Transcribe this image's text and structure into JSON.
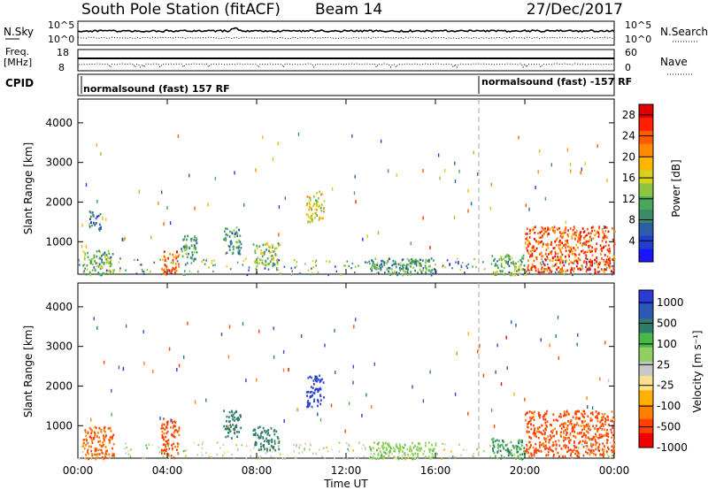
{
  "header": {
    "station": "South Pole Station (fitACF)",
    "beam": "Beam 14",
    "date": "27/Dec/2017"
  },
  "nsky_panel": {
    "left_label": "N.Sky",
    "right_label": "N.Search",
    "left_ticks": [
      "10^5",
      "10^0"
    ],
    "right_ticks": [
      "10^5",
      "10^0"
    ]
  },
  "freq_panel": {
    "left_label_1": "Freq.",
    "left_label_2": "[MHz]",
    "right_label": "Nave",
    "left_ticks": [
      "18",
      "8"
    ],
    "right_ticks": [
      "60",
      "0"
    ]
  },
  "cpid_panel": {
    "label": "CPID",
    "programs": [
      {
        "text": "normalsound (fast) 157 RF",
        "start_hour": 0
      },
      {
        "text": "normalsound (fast) -157 RF",
        "start_hour": 18
      }
    ]
  },
  "chart_data": [
    {
      "type": "heatmap",
      "name": "power",
      "ylabel": "Slant Range [km]",
      "y_ticks": [
        1000,
        2000,
        3000,
        4000
      ],
      "ylim": [
        180,
        4600
      ],
      "xlim_hours": [
        0,
        24
      ],
      "colorbar": {
        "label": "Power [dB]",
        "ticks": [
          4,
          8,
          12,
          16,
          20,
          24,
          28
        ],
        "range": [
          0,
          30
        ],
        "colors": [
          "#1a14ff",
          "#1f3fd0",
          "#2a5fa8",
          "#3b8a6a",
          "#48a85a",
          "#8cc63e",
          "#d6d020",
          "#ffb400",
          "#ff8a00",
          "#ff5a00",
          "#ff2000",
          "#e00000"
        ]
      },
      "regions": [
        {
          "t": [
            0.2,
            1.6
          ],
          "r": [
            180,
            800
          ],
          "v": 12
        },
        {
          "t": [
            0.5,
            1.0
          ],
          "r": [
            1300,
            1800
          ],
          "v": 6
        },
        {
          "t": [
            3.7,
            4.5
          ],
          "r": [
            200,
            800
          ],
          "v": 24
        },
        {
          "t": [
            4.6,
            5.3
          ],
          "r": [
            500,
            1200
          ],
          "v": 10
        },
        {
          "t": [
            6.5,
            7.3
          ],
          "r": [
            700,
            1400
          ],
          "v": 9
        },
        {
          "t": [
            7.8,
            9.0
          ],
          "r": [
            400,
            1000
          ],
          "v": 14
        },
        {
          "t": [
            10.2,
            11.0
          ],
          "r": [
            1500,
            2300
          ],
          "v": 16
        },
        {
          "t": [
            13.0,
            16.0
          ],
          "r": [
            180,
            600
          ],
          "v": 10
        },
        {
          "t": [
            18.5,
            20.0
          ],
          "r": [
            180,
            700
          ],
          "v": 12
        },
        {
          "t": [
            20.0,
            24.0
          ],
          "r": [
            250,
            1400
          ],
          "v": 24
        }
      ]
    },
    {
      "type": "heatmap",
      "name": "velocity",
      "ylabel": "Slant Range [km]",
      "y_ticks": [
        1000,
        2000,
        3000,
        4000
      ],
      "ylim": [
        180,
        4600
      ],
      "xlim_hours": [
        0,
        24
      ],
      "x_ticks": [
        "00:00",
        "04:00",
        "08:00",
        "12:00",
        "16:00",
        "20:00",
        "00:00"
      ],
      "xlabel": "Time UT",
      "colorbar": {
        "label": "Velocity [m s⁻¹]",
        "ticks": [
          "1000",
          "500",
          "100",
          "25",
          "-25",
          "-100",
          "-500",
          "-1000"
        ],
        "colors": [
          "#2b3bd6",
          "#2c58b8",
          "#2e7d6a",
          "#48b848",
          "#90d060",
          "#c8c8c8",
          "#ffe08a",
          "#ffb000",
          "#ff8000",
          "#ff4000",
          "#f00000"
        ]
      },
      "regions": [
        {
          "t": [
            0.2,
            1.6
          ],
          "r": [
            180,
            1000
          ],
          "v": -300
        },
        {
          "t": [
            3.7,
            4.5
          ],
          "r": [
            200,
            1200
          ],
          "v": -400
        },
        {
          "t": [
            6.5,
            7.3
          ],
          "r": [
            700,
            1400
          ],
          "v": 150
        },
        {
          "t": [
            7.8,
            9.0
          ],
          "r": [
            400,
            1000
          ],
          "v": 120
        },
        {
          "t": [
            10.2,
            11.0
          ],
          "r": [
            1500,
            2300
          ],
          "v": 800
        },
        {
          "t": [
            13.0,
            16.0
          ],
          "r": [
            180,
            600
          ],
          "v": 20
        },
        {
          "t": [
            18.5,
            20.0
          ],
          "r": [
            180,
            700
          ],
          "v": 60
        },
        {
          "t": [
            20.0,
            24.0
          ],
          "r": [
            250,
            1400
          ],
          "v": -400
        }
      ]
    }
  ]
}
